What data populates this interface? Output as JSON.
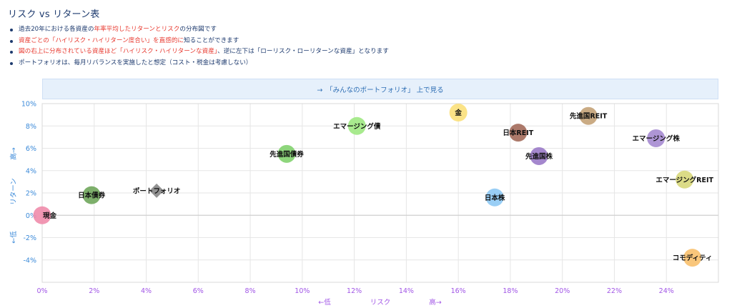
{
  "page": {
    "title": "リスク vs リターン表",
    "notes": [
      [
        "過去20年における各資産の",
        "年率平均したリターンとリスク",
        "の分布図です"
      ],
      [
        "資産ごとの「ハイリスク・ハイリターン度合い」を直感的に",
        "",
        "知ることができます"
      ],
      [
        "図の右上に分布されている資産ほど「ハイリスク・ハイリターンな資産」",
        "",
        "、逆に左下は「ローリスク・ローリターンな資産」となります"
      ],
      [
        "ポートフォリオは、毎月リバランスを実施したと想定（コスト・税金は考慮しない）",
        "",
        ""
      ]
    ],
    "link_text": "→　「みんなのポートフォリオ」 上で見る"
  },
  "colors": {
    "ytick": "#3b8ad9",
    "xtick": "#a156e6",
    "grid": "#e6e6e6",
    "highlight": "#e8392f"
  },
  "chart_data": {
    "type": "scatter",
    "title": "",
    "xlabel": "リスク",
    "xlabel_low": "←低",
    "xlabel_high": "高→",
    "ylabel": "リターン",
    "ylabel_low": "←低",
    "ylabel_high": "高→",
    "xlim": [
      0,
      26
    ],
    "ylim": [
      -6,
      10
    ],
    "xticks": [
      0,
      2,
      4,
      6,
      8,
      10,
      12,
      14,
      16,
      18,
      20,
      22,
      24
    ],
    "yticks": [
      -4,
      -2,
      0,
      2,
      4,
      6,
      8,
      10
    ],
    "tick_format": "%",
    "points": [
      {
        "name": "現金",
        "x": 0.0,
        "y": 0.0,
        "color": "#f08cab",
        "marker": "circle",
        "label_pos": "right"
      },
      {
        "name": "日本債券",
        "x": 1.9,
        "y": 1.8,
        "color": "#6fa65b",
        "marker": "circle",
        "label_pos": "center"
      },
      {
        "name": "ポートフォリオ",
        "x": 4.4,
        "y": 2.2,
        "color": "#8c8c8c",
        "marker": "diamond",
        "label_pos": "center"
      },
      {
        "name": "先進国債券",
        "x": 9.4,
        "y": 5.5,
        "color": "#82d26e",
        "marker": "circle",
        "label_pos": "center"
      },
      {
        "name": "エマージング債",
        "x": 12.1,
        "y": 8.0,
        "color": "#9fe882",
        "marker": "circle",
        "label_pos": "center"
      },
      {
        "name": "金",
        "x": 16.0,
        "y": 9.2,
        "color": "#fbe07a",
        "marker": "circle",
        "label_pos": "center"
      },
      {
        "name": "日本株",
        "x": 17.4,
        "y": 1.6,
        "color": "#8ec9f4",
        "marker": "circle",
        "label_pos": "center"
      },
      {
        "name": "日本REIT",
        "x": 18.3,
        "y": 7.4,
        "color": "#a36a5a",
        "marker": "circle",
        "label_pos": "center"
      },
      {
        "name": "先進国株",
        "x": 19.1,
        "y": 5.3,
        "color": "#9a7ac8",
        "marker": "circle",
        "label_pos": "center"
      },
      {
        "name": "先進国REIT",
        "x": 21.0,
        "y": 8.9,
        "color": "#c4a277",
        "marker": "circle",
        "label_pos": "center"
      },
      {
        "name": "エマージング株",
        "x": 23.6,
        "y": 6.9,
        "color": "#a58ad0",
        "marker": "circle",
        "label_pos": "center"
      },
      {
        "name": "エマージングREIT",
        "x": 24.7,
        "y": 3.2,
        "color": "#d7d77a",
        "marker": "circle",
        "label_pos": "center"
      },
      {
        "name": "コモディティ",
        "x": 25.0,
        "y": -3.8,
        "color": "#f8c06d",
        "marker": "circle",
        "label_pos": "center"
      }
    ]
  }
}
